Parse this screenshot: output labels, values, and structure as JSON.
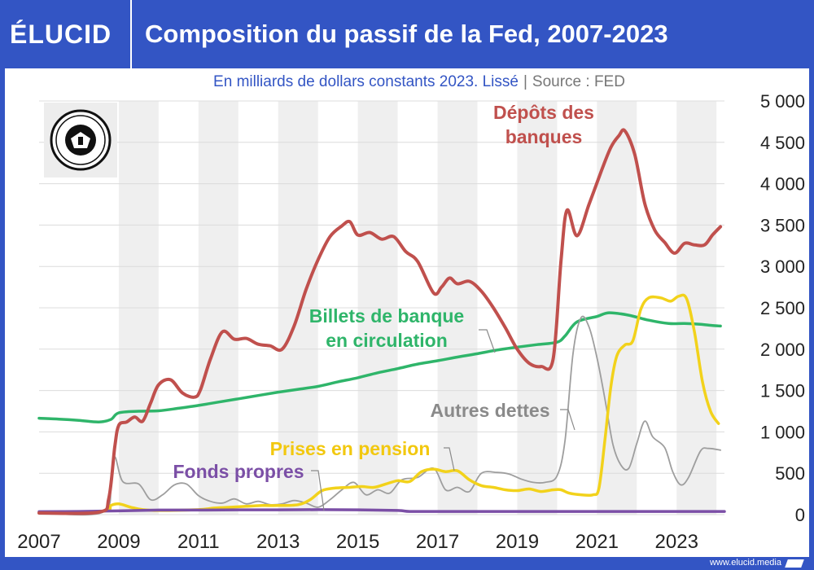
{
  "brand": "ÉLUCID",
  "title": "Composition du passif de la Fed, 2007-2023",
  "subtitle": "En milliards de dollars constants 2023. Lissé",
  "source": "Source : FED",
  "footer_url": "www.elucid.media",
  "logo": "federal-reserve-seal",
  "colors": {
    "background": "#3355c4",
    "depots": "#c0504d",
    "billets": "#2fb56a",
    "autres": "#9e9e9e",
    "prises": "#f2d21b",
    "fonds": "#7b4fa6"
  },
  "chart_data": {
    "type": "line",
    "xlim": [
      2007,
      2024.2
    ],
    "ylim": [
      0,
      5000
    ],
    "grid": "horizontal",
    "x_ticks": [
      2007,
      2009,
      2011,
      2013,
      2015,
      2017,
      2019,
      2021,
      2023
    ],
    "x_tick_labels": [
      "2007",
      "2009",
      "2011",
      "2013",
      "2015",
      "2017",
      "2019",
      "2021",
      "2023"
    ],
    "y_ticks": [
      0,
      500,
      1000,
      1500,
      2000,
      2500,
      3000,
      3500,
      4000,
      4500,
      5000
    ],
    "y_tick_labels": [
      "0",
      "500",
      "1 000",
      "1 500",
      "2 000",
      "2 500",
      "3 000",
      "3 500",
      "4 000",
      "4 500",
      "5 000"
    ],
    "series": [
      {
        "name": "Billets de banque en circulation",
        "label_lines": [
          "Billets de banque",
          "en circulation"
        ],
        "color_key": "billets",
        "points": [
          [
            2007,
            1165
          ],
          [
            2007.5,
            1155
          ],
          [
            2008,
            1140
          ],
          [
            2008.5,
            1120
          ],
          [
            2008.8,
            1150
          ],
          [
            2009,
            1230
          ],
          [
            2009.5,
            1250
          ],
          [
            2010,
            1255
          ],
          [
            2010.5,
            1285
          ],
          [
            2011,
            1320
          ],
          [
            2011.5,
            1360
          ],
          [
            2012,
            1400
          ],
          [
            2012.5,
            1440
          ],
          [
            2013,
            1480
          ],
          [
            2013.5,
            1515
          ],
          [
            2014,
            1550
          ],
          [
            2014.5,
            1605
          ],
          [
            2015,
            1655
          ],
          [
            2015.5,
            1715
          ],
          [
            2016,
            1765
          ],
          [
            2016.5,
            1820
          ],
          [
            2017,
            1860
          ],
          [
            2017.5,
            1905
          ],
          [
            2018,
            1945
          ],
          [
            2018.5,
            1990
          ],
          [
            2019,
            2025
          ],
          [
            2019.5,
            2055
          ],
          [
            2020,
            2085
          ],
          [
            2020.2,
            2160
          ],
          [
            2020.5,
            2330
          ],
          [
            2021,
            2395
          ],
          [
            2021.3,
            2440
          ],
          [
            2021.8,
            2410
          ],
          [
            2022.3,
            2350
          ],
          [
            2022.8,
            2310
          ],
          [
            2023.2,
            2310
          ],
          [
            2023.6,
            2300
          ],
          [
            2023.9,
            2285
          ],
          [
            2024.1,
            2280
          ]
        ]
      },
      {
        "name": "Dépôts des banques",
        "label_lines": [
          "Dépôts des",
          "banques"
        ],
        "color_key": "depots",
        "points": [
          [
            2007,
            20
          ],
          [
            2008.5,
            30
          ],
          [
            2008.75,
            200
          ],
          [
            2008.9,
            820
          ],
          [
            2009,
            1080
          ],
          [
            2009.2,
            1120
          ],
          [
            2009.4,
            1180
          ],
          [
            2009.6,
            1130
          ],
          [
            2009.8,
            1350
          ],
          [
            2010,
            1570
          ],
          [
            2010.3,
            1630
          ],
          [
            2010.6,
            1470
          ],
          [
            2010.9,
            1420
          ],
          [
            2011.05,
            1510
          ],
          [
            2011.3,
            1880
          ],
          [
            2011.6,
            2210
          ],
          [
            2011.9,
            2120
          ],
          [
            2012.2,
            2130
          ],
          [
            2012.5,
            2060
          ],
          [
            2012.8,
            2040
          ],
          [
            2013.1,
            2000
          ],
          [
            2013.4,
            2280
          ],
          [
            2013.7,
            2720
          ],
          [
            2014,
            3080
          ],
          [
            2014.3,
            3360
          ],
          [
            2014.6,
            3490
          ],
          [
            2014.8,
            3540
          ],
          [
            2015,
            3380
          ],
          [
            2015.3,
            3410
          ],
          [
            2015.6,
            3330
          ],
          [
            2015.9,
            3360
          ],
          [
            2016.2,
            3180
          ],
          [
            2016.5,
            3060
          ],
          [
            2016.9,
            2680
          ],
          [
            2017.1,
            2750
          ],
          [
            2017.3,
            2860
          ],
          [
            2017.5,
            2790
          ],
          [
            2017.8,
            2820
          ],
          [
            2018.1,
            2700
          ],
          [
            2018.4,
            2500
          ],
          [
            2018.7,
            2260
          ],
          [
            2019,
            2000
          ],
          [
            2019.3,
            1830
          ],
          [
            2019.6,
            1790
          ],
          [
            2019.9,
            1880
          ],
          [
            2020.1,
            3080
          ],
          [
            2020.25,
            3680
          ],
          [
            2020.5,
            3370
          ],
          [
            2020.8,
            3750
          ],
          [
            2021.1,
            4140
          ],
          [
            2021.35,
            4440
          ],
          [
            2021.55,
            4580
          ],
          [
            2021.7,
            4640
          ],
          [
            2021.95,
            4350
          ],
          [
            2022.2,
            3760
          ],
          [
            2022.45,
            3440
          ],
          [
            2022.7,
            3290
          ],
          [
            2022.95,
            3160
          ],
          [
            2023.2,
            3280
          ],
          [
            2023.45,
            3260
          ],
          [
            2023.7,
            3260
          ],
          [
            2023.9,
            3380
          ],
          [
            2024.1,
            3480
          ]
        ]
      },
      {
        "name": "Autres dettes",
        "label_lines": [
          "Autres dettes"
        ],
        "color_key": "autres",
        "points": [
          [
            2007,
            20
          ],
          [
            2008.6,
            30
          ],
          [
            2008.8,
            420
          ],
          [
            2008.9,
            700
          ],
          [
            2009.1,
            400
          ],
          [
            2009.5,
            370
          ],
          [
            2009.8,
            180
          ],
          [
            2010.1,
            240
          ],
          [
            2010.4,
            360
          ],
          [
            2010.7,
            370
          ],
          [
            2011,
            230
          ],
          [
            2011.3,
            160
          ],
          [
            2011.6,
            140
          ],
          [
            2011.9,
            190
          ],
          [
            2012.2,
            130
          ],
          [
            2012.5,
            160
          ],
          [
            2012.8,
            120
          ],
          [
            2013.1,
            130
          ],
          [
            2013.4,
            170
          ],
          [
            2013.7,
            140
          ],
          [
            2014,
            90
          ],
          [
            2014.3,
            180
          ],
          [
            2014.6,
            300
          ],
          [
            2014.9,
            390
          ],
          [
            2015.2,
            240
          ],
          [
            2015.5,
            300
          ],
          [
            2015.8,
            260
          ],
          [
            2016.1,
            420
          ],
          [
            2016.5,
            450
          ],
          [
            2016.9,
            560
          ],
          [
            2017.2,
            300
          ],
          [
            2017.5,
            330
          ],
          [
            2017.8,
            280
          ],
          [
            2018.1,
            500
          ],
          [
            2018.5,
            510
          ],
          [
            2018.8,
            490
          ],
          [
            2019.1,
            430
          ],
          [
            2019.4,
            390
          ],
          [
            2019.7,
            390
          ],
          [
            2020,
            470
          ],
          [
            2020.2,
            900
          ],
          [
            2020.4,
            1950
          ],
          [
            2020.6,
            2380
          ],
          [
            2020.8,
            2270
          ],
          [
            2021,
            1900
          ],
          [
            2021.2,
            1400
          ],
          [
            2021.4,
            850
          ],
          [
            2021.6,
            600
          ],
          [
            2021.8,
            560
          ],
          [
            2022,
            860
          ],
          [
            2022.2,
            1130
          ],
          [
            2022.4,
            940
          ],
          [
            2022.7,
            810
          ],
          [
            2022.9,
            520
          ],
          [
            2023.1,
            360
          ],
          [
            2023.3,
            450
          ],
          [
            2023.6,
            770
          ],
          [
            2023.8,
            800
          ],
          [
            2024.1,
            780
          ]
        ]
      },
      {
        "name": "Prises en pension",
        "label_lines": [
          "Prises en pension"
        ],
        "color_key": "prises",
        "points": [
          [
            2007,
            20
          ],
          [
            2008.6,
            40
          ],
          [
            2008.8,
            110
          ],
          [
            2009,
            130
          ],
          [
            2009.3,
            90
          ],
          [
            2009.6,
            60
          ],
          [
            2010,
            50
          ],
          [
            2011,
            60
          ],
          [
            2011.4,
            80
          ],
          [
            2011.8,
            90
          ],
          [
            2012.2,
            100
          ],
          [
            2012.6,
            110
          ],
          [
            2013,
            110
          ],
          [
            2013.5,
            120
          ],
          [
            2013.8,
            180
          ],
          [
            2014.1,
            290
          ],
          [
            2014.4,
            320
          ],
          [
            2014.8,
            330
          ],
          [
            2015.1,
            340
          ],
          [
            2015.4,
            330
          ],
          [
            2015.7,
            370
          ],
          [
            2016,
            410
          ],
          [
            2016.3,
            400
          ],
          [
            2016.6,
            520
          ],
          [
            2016.9,
            550
          ],
          [
            2017.2,
            520
          ],
          [
            2017.5,
            530
          ],
          [
            2017.8,
            420
          ],
          [
            2018.1,
            350
          ],
          [
            2018.4,
            330
          ],
          [
            2018.7,
            300
          ],
          [
            2019,
            290
          ],
          [
            2019.3,
            310
          ],
          [
            2019.6,
            280
          ],
          [
            2019.9,
            300
          ],
          [
            2020.1,
            300
          ],
          [
            2020.3,
            260
          ],
          [
            2020.6,
            240
          ],
          [
            2020.9,
            240
          ],
          [
            2021.05,
            320
          ],
          [
            2021.2,
            900
          ],
          [
            2021.35,
            1550
          ],
          [
            2021.5,
            1920
          ],
          [
            2021.7,
            2050
          ],
          [
            2021.9,
            2100
          ],
          [
            2022.1,
            2480
          ],
          [
            2022.3,
            2620
          ],
          [
            2022.6,
            2620
          ],
          [
            2022.85,
            2580
          ],
          [
            2023.05,
            2640
          ],
          [
            2023.25,
            2610
          ],
          [
            2023.45,
            2200
          ],
          [
            2023.65,
            1600
          ],
          [
            2023.85,
            1250
          ],
          [
            2024.05,
            1100
          ]
        ]
      },
      {
        "name": "Fonds propres",
        "label_lines": [
          "Fonds propres"
        ],
        "color_key": "fonds",
        "points": [
          [
            2007,
            35
          ],
          [
            2008,
            38
          ],
          [
            2009,
            45
          ],
          [
            2010,
            55
          ],
          [
            2011,
            55
          ],
          [
            2012,
            58
          ],
          [
            2013,
            58
          ],
          [
            2014,
            60
          ],
          [
            2015,
            58
          ],
          [
            2016,
            50
          ],
          [
            2016.3,
            38
          ],
          [
            2017,
            38
          ],
          [
            2018,
            38
          ],
          [
            2019,
            38
          ],
          [
            2020,
            38
          ],
          [
            2021,
            38
          ],
          [
            2022,
            38
          ],
          [
            2023,
            38
          ],
          [
            2024.2,
            38
          ]
        ]
      }
    ]
  }
}
